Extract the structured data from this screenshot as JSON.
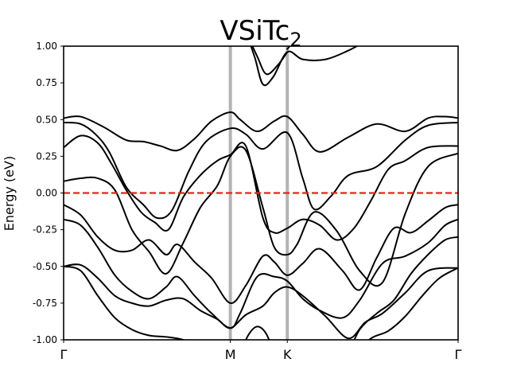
{
  "chart_data": {
    "type": "line",
    "title": "VSiTc",
    "title_subscript": "2",
    "xlabel": "",
    "ylabel": "Energy (eV)",
    "ylim": [
      -1.0,
      1.0
    ],
    "xlim": [
      0,
      3.4641
    ],
    "y_ticks": [
      "1.00",
      "0.75",
      "0.50",
      "0.25",
      "0.00",
      "-0.25",
      "-0.50",
      "-0.75",
      "-1.00"
    ],
    "y_tick_values": [
      1.0,
      0.75,
      0.5,
      0.25,
      0.0,
      -0.25,
      -0.5,
      -0.75,
      -1.0
    ],
    "k_points": [
      {
        "label": "Γ",
        "x": 0
      },
      {
        "label": "M",
        "x": 1.4641
      },
      {
        "label": "K",
        "x": 1.9641
      },
      {
        "label": "Γ",
        "x": 3.4641
      }
    ],
    "fermi_level": {
      "value": 0.0,
      "color": "#e8241b",
      "style": "dashed"
    },
    "high_symmetry_line_color": "#b3b3b3",
    "band_color": "#000000",
    "grid": false,
    "series": [
      {
        "x": [
          0,
          0.15,
          0.35,
          0.55,
          0.7,
          0.85,
          1.0,
          1.15,
          1.3,
          1.4641,
          1.55,
          1.7,
          1.85,
          1.9641,
          2.1,
          2.25,
          2.5,
          2.75,
          3.0,
          3.2,
          3.35,
          3.4641
        ],
        "y": [
          0.51,
          0.52,
          0.45,
          0.36,
          0.35,
          0.32,
          0.29,
          0.37,
          0.49,
          0.55,
          0.5,
          0.42,
          0.49,
          0.52,
          0.4,
          0.28,
          0.38,
          0.47,
          0.42,
          0.51,
          0.52,
          0.51
        ]
      },
      {
        "x": [
          0,
          0.15,
          0.28,
          0.4,
          0.55,
          0.7,
          0.82,
          0.95,
          1.1,
          1.25,
          1.4641,
          1.6,
          1.75,
          1.9641,
          2.1,
          2.2,
          2.35,
          2.5,
          2.75,
          3.0,
          3.2,
          3.4641
        ],
        "y": [
          0.48,
          0.47,
          0.4,
          0.28,
          0.04,
          -0.08,
          -0.17,
          -0.12,
          0.15,
          0.35,
          0.44,
          0.4,
          0.3,
          0.41,
          0.1,
          -0.11,
          -0.02,
          0.12,
          0.18,
          0.36,
          0.46,
          0.48
        ]
      },
      {
        "x": [
          0,
          0.15,
          0.3,
          0.42,
          0.55,
          0.68,
          0.8,
          0.92,
          1.05,
          1.2,
          1.35,
          1.4641,
          1.6,
          1.75,
          1.85,
          1.9641,
          2.1,
          2.25,
          2.4,
          2.55,
          2.7,
          2.85,
          3.0,
          3.2,
          3.4641
        ],
        "y": [
          0.31,
          0.39,
          0.34,
          0.2,
          0.02,
          -0.13,
          -0.2,
          -0.25,
          -0.03,
          0.12,
          0.22,
          0.26,
          0.32,
          -0.17,
          -0.27,
          -0.24,
          -0.18,
          -0.22,
          -0.32,
          -0.24,
          -0.05,
          0.16,
          0.22,
          0.31,
          0.32
        ]
      },
      {
        "x": [
          0,
          0.15,
          0.3,
          0.45,
          0.6,
          0.75,
          0.9,
          1.05,
          1.2,
          1.35,
          1.4641,
          1.6,
          1.75,
          1.85,
          1.9641,
          2.05,
          2.2,
          2.4,
          2.6,
          2.8,
          3.0,
          3.2,
          3.4641
        ],
        "y": [
          0.08,
          0.1,
          0.1,
          0.02,
          -0.25,
          -0.4,
          -0.55,
          -0.34,
          -0.1,
          0.05,
          0.25,
          0.29,
          -0.1,
          -0.37,
          -0.42,
          -0.35,
          -0.13,
          -0.26,
          -0.53,
          -0.61,
          -0.14,
          0.18,
          0.27
        ]
      },
      {
        "x": [
          0,
          0.15,
          0.3,
          0.45,
          0.6,
          0.75,
          0.9,
          1.0,
          1.15,
          1.3,
          1.4641,
          1.6,
          1.75,
          1.85,
          1.9641,
          2.1,
          2.25,
          2.45,
          2.6,
          2.75,
          2.9,
          3.05,
          3.2,
          3.35,
          3.4641
        ],
        "y": [
          -0.08,
          -0.15,
          -0.3,
          -0.39,
          -0.39,
          -0.32,
          -0.42,
          -0.35,
          -0.47,
          -0.58,
          -0.75,
          -0.63,
          -0.43,
          -0.47,
          -0.56,
          -0.48,
          -0.38,
          -0.53,
          -0.66,
          -0.44,
          -0.24,
          -0.27,
          -0.19,
          -0.1,
          -0.08
        ]
      },
      {
        "x": [
          0,
          0.15,
          0.3,
          0.45,
          0.6,
          0.75,
          0.9,
          1.0,
          1.15,
          1.3,
          1.4641,
          1.55,
          1.7,
          1.85,
          1.9641,
          2.1,
          2.25,
          2.45,
          2.6,
          2.8,
          3.0,
          3.2,
          3.35,
          3.4641
        ],
        "y": [
          -0.18,
          -0.22,
          -0.37,
          -0.56,
          -0.67,
          -0.72,
          -0.64,
          -0.57,
          -0.7,
          -0.82,
          -0.92,
          -0.82,
          -0.57,
          -0.57,
          -0.6,
          -0.72,
          -0.8,
          -0.85,
          -0.73,
          -0.48,
          -0.43,
          -0.34,
          -0.22,
          -0.18
        ]
      },
      {
        "x": [
          0,
          0.15,
          0.3,
          0.45,
          0.6,
          0.75,
          0.9,
          1.05,
          1.2,
          1.35,
          1.4641,
          1.6,
          1.75,
          1.85,
          1.9641,
          2.1,
          2.3,
          2.5,
          2.65,
          2.8,
          3.0,
          3.2,
          3.4641
        ],
        "y": [
          -0.5,
          -0.49,
          -0.58,
          -0.7,
          -0.75,
          -0.77,
          -0.73,
          -0.72,
          -0.8,
          -0.86,
          -0.92,
          -0.83,
          -0.77,
          -0.68,
          -0.64,
          -0.7,
          -0.84,
          -0.99,
          -0.88,
          -0.82,
          -0.68,
          -0.53,
          -0.51
        ]
      },
      {
        "x": [
          0,
          0.15,
          0.3,
          0.45,
          0.6,
          0.75,
          0.9,
          1.05,
          1.2,
          1.35,
          1.4641,
          1.52
        ],
        "y": [
          -0.5,
          -0.53,
          -0.7,
          -0.85,
          -0.93,
          -0.97,
          -0.98,
          -1.0,
          -1.05,
          -1.1,
          -1.12,
          -1.1
        ]
      },
      {
        "x": [
          1.55,
          1.62,
          1.7,
          1.78,
          1.85
        ],
        "y": [
          -1.1,
          -0.97,
          -0.91,
          -0.96,
          -1.1
        ]
      },
      {
        "x": [
          2.5,
          2.6,
          2.75,
          2.9,
          3.05,
          3.2,
          3.35,
          3.4641
        ],
        "y": [
          -1.1,
          -0.93,
          -0.82,
          -0.73,
          -0.55,
          -0.42,
          -0.32,
          -0.3
        ]
      },
      {
        "x": [
          2.55,
          2.7,
          2.85,
          3.0,
          3.15,
          3.3,
          3.4641
        ],
        "y": [
          -1.1,
          -0.99,
          -0.94,
          -0.84,
          -0.7,
          -0.58,
          -0.51
        ]
      },
      {
        "x": [
          1.6,
          1.7,
          1.78,
          1.88,
          1.9641
        ],
        "y": [
          1.1,
          0.93,
          0.81,
          0.87,
          0.96
        ]
      },
      {
        "x": [
          1.6,
          1.68,
          1.75,
          1.84,
          1.9641,
          2.1,
          2.3,
          2.5,
          2.7,
          2.9
        ],
        "y": [
          1.1,
          0.92,
          0.74,
          0.79,
          0.96,
          0.91,
          0.91,
          0.97,
          1.05,
          1.1
        ]
      },
      {
        "x": [
          1.9641,
          2.05,
          2.2
        ],
        "y": [
          0.98,
          1.05,
          1.1
        ]
      }
    ]
  }
}
